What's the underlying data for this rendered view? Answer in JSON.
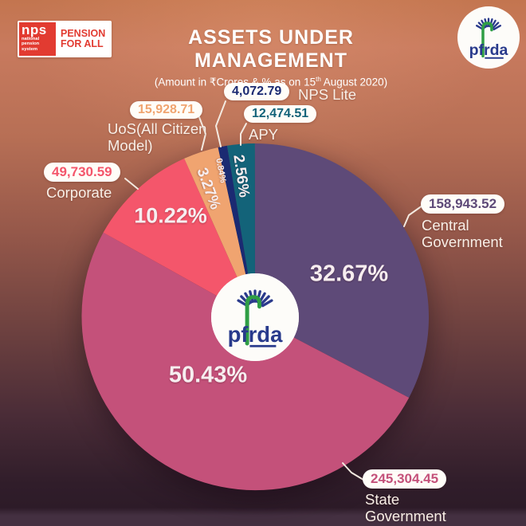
{
  "header": {
    "nps_logo": {
      "abbr": "nps",
      "sub": "national pension system",
      "tagline": "PENSION FOR ALL"
    },
    "title": "ASSETS UNDER MANAGEMENT",
    "subtitle_prefix": "(Amount in ₹Crores & % as on 15",
    "subtitle_sup": "th",
    "subtitle_suffix": " August 2020)",
    "pfrda_logo_text": "pfrda"
  },
  "chart_data": {
    "type": "pie",
    "title": "ASSETS UNDER MANAGEMENT",
    "unit": "₹ Crores",
    "as_on": "15th August 2020",
    "start_angle_deg": 0,
    "direction": "clockwise",
    "center_logo": "pfrda",
    "segments": [
      {
        "label": "Central Government",
        "amount": "158,943.52",
        "value": 158943.52,
        "pct": 32.67,
        "pct_label": "32.67%",
        "color": "#5e4a78"
      },
      {
        "label": "State Government",
        "amount": "245,304.45",
        "value": 245304.45,
        "pct": 50.43,
        "pct_label": "50.43%",
        "color": "#c4517a"
      },
      {
        "label": "Corporate",
        "amount": "49,730.59",
        "value": 49730.59,
        "pct": 10.22,
        "pct_label": "10.22%",
        "color": "#f4566b"
      },
      {
        "label": "UoS(All Citizen Model)",
        "amount": "15,928.71",
        "value": 15928.71,
        "pct": 3.27,
        "pct_label": "3.27%",
        "color": "#f0a470"
      },
      {
        "label": "NPS Lite",
        "amount": "4,072.79",
        "value": 4072.79,
        "pct": 0.84,
        "pct_label": "0.84%",
        "color": "#1b2a72"
      },
      {
        "label": "APY",
        "amount": "12,474.51",
        "value": 12474.51,
        "pct": 2.56,
        "pct_label": "2.56%",
        "color": "#136379"
      }
    ]
  }
}
